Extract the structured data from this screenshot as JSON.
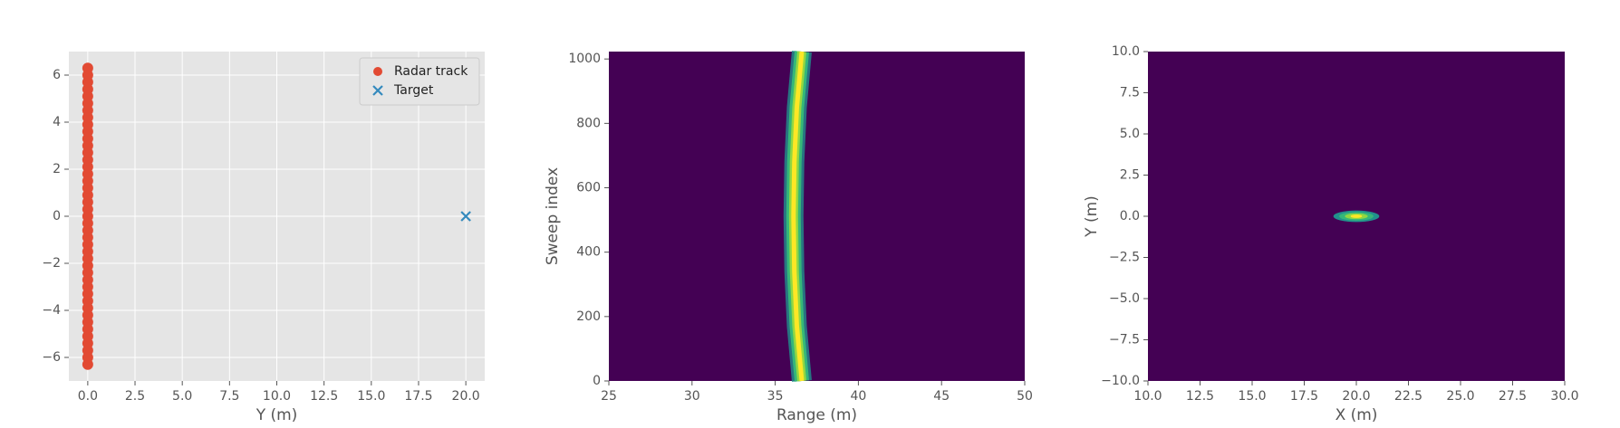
{
  "chart_data": [
    {
      "type": "scatter",
      "xlabel": "Y (m)",
      "xlim": [
        -1,
        21
      ],
      "ylim": [
        -7,
        7
      ],
      "xticks": [
        {
          "value": 0,
          "label": "0.0"
        },
        {
          "value": 2.5,
          "label": "2.5"
        },
        {
          "value": 5,
          "label": "5.0"
        },
        {
          "value": 7.5,
          "label": "7.5"
        },
        {
          "value": 10,
          "label": "10.0"
        },
        {
          "value": 12.5,
          "label": "12.5"
        },
        {
          "value": 15,
          "label": "15.0"
        },
        {
          "value": 17.5,
          "label": "17.5"
        },
        {
          "value": 20,
          "label": "20.0"
        }
      ],
      "yticks": [
        {
          "value": -6,
          "label": "−6"
        },
        {
          "value": -4,
          "label": "−4"
        },
        {
          "value": -2,
          "label": "−2"
        },
        0,
        2,
        4,
        6
      ],
      "grid": true,
      "background": "#e5e5e5",
      "legend": "upper right",
      "series": [
        {
          "name": "Radar track",
          "color": "#e24a33",
          "marker": "o",
          "x": [
            0,
            0,
            0,
            0,
            0,
            0,
            0,
            0,
            0,
            0,
            0,
            0,
            0,
            0,
            0,
            0,
            0,
            0,
            0,
            0,
            0,
            0,
            0,
            0,
            0,
            0,
            0,
            0,
            0,
            0,
            0,
            0,
            0,
            0,
            0,
            0,
            0,
            0,
            0,
            0,
            0,
            0,
            0
          ],
          "y": [
            -6.3,
            -6.0,
            -5.7,
            -5.4,
            -5.1,
            -4.8,
            -4.5,
            -4.2,
            -3.9,
            -3.6,
            -3.3,
            -3.0,
            -2.7,
            -2.4,
            -2.1,
            -1.8,
            -1.5,
            -1.2,
            -0.9,
            -0.6,
            -0.3,
            0,
            0.3,
            0.6,
            0.9,
            1.2,
            1.5,
            1.8,
            2.1,
            2.4,
            2.7,
            3.0,
            3.3,
            3.6,
            3.9,
            4.2,
            4.5,
            4.8,
            5.1,
            5.4,
            5.7,
            6.0,
            6.3
          ]
        },
        {
          "name": "Target",
          "color": "#348abd",
          "marker": "x",
          "x": [
            20
          ],
          "y": [
            0
          ]
        }
      ]
    },
    {
      "type": "heatmap",
      "xlabel": "Range (m)",
      "ylabel": "Sweep index",
      "xlim": [
        25,
        50
      ],
      "ylim": [
        0,
        1023
      ],
      "xticks": [
        25,
        30,
        35,
        40,
        45,
        50
      ],
      "yticks": [
        0,
        200,
        400,
        600,
        800,
        1000
      ],
      "background": "#440154",
      "colormap": [
        "#21918c",
        "#35b779",
        "#90d743",
        "#fde725"
      ],
      "ridge": {
        "x": [
          36.6,
          36.3,
          36.15,
          36.1,
          36.15,
          36.3,
          36.6
        ],
        "y": [
          0,
          170,
          340,
          512,
          680,
          850,
          1023
        ]
      }
    },
    {
      "type": "heatmap",
      "xlabel": "X (m)",
      "ylabel": "Y (m)",
      "xlim": [
        10,
        30
      ],
      "ylim": [
        -10,
        10
      ],
      "xticks": [
        {
          "value": 10,
          "label": "10.0"
        },
        {
          "value": 12.5,
          "label": "12.5"
        },
        {
          "value": 15,
          "label": "15.0"
        },
        {
          "value": 17.5,
          "label": "17.5"
        },
        {
          "value": 20,
          "label": "20.0"
        },
        {
          "value": 22.5,
          "label": "22.5"
        },
        {
          "value": 25,
          "label": "25.0"
        },
        {
          "value": 27.5,
          "label": "27.5"
        },
        {
          "value": 30,
          "label": "30.0"
        }
      ],
      "yticks": [
        {
          "value": -10,
          "label": "−10.0"
        },
        {
          "value": -7.5,
          "label": "−7.5"
        },
        {
          "value": -5,
          "label": "−5.0"
        },
        {
          "value": -2.5,
          "label": "−2.5"
        },
        {
          "value": 0,
          "label": "0.0"
        },
        {
          "value": 2.5,
          "label": "2.5"
        },
        {
          "value": 5,
          "label": "5.0"
        },
        {
          "value": 7.5,
          "label": "7.5"
        },
        {
          "value": 10,
          "label": "10.0"
        }
      ],
      "background": "#440154",
      "colormap": [
        "#21918c",
        "#35b779",
        "#90d743",
        "#fde725"
      ],
      "spot": {
        "x": 20,
        "y": 0,
        "rx": 1.1,
        "ry": 0.35
      }
    }
  ]
}
